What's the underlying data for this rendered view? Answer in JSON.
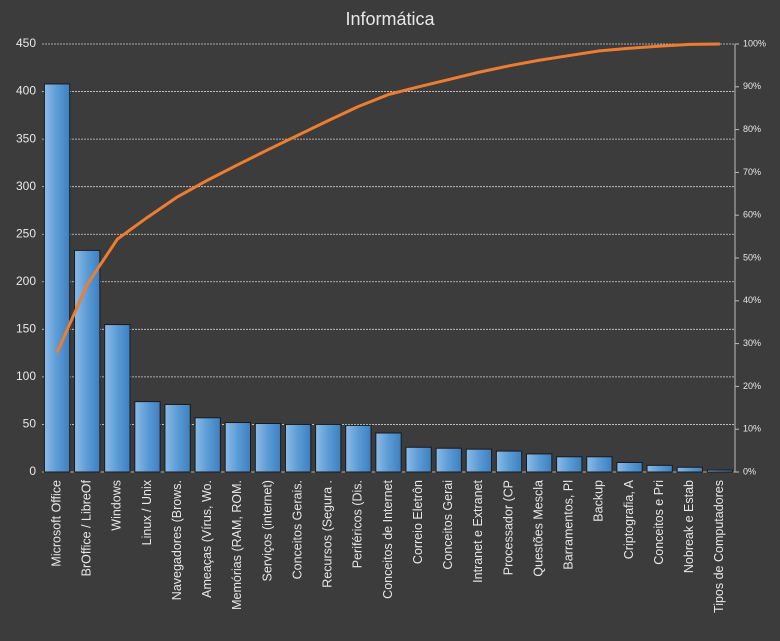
{
  "chart_data": {
    "type": "pareto",
    "title": "Informática",
    "categories": [
      "Microsoft Office",
      "BrOffice / LibreOf",
      "Windows",
      "Linux / Unix",
      "Navegadores (Brows.",
      "Ameaças (Vírus, Wo.",
      "Memórias (RAM, ROM.",
      "Serviços (internet)",
      "Conceitos Gerais.",
      "Recursos (Segura .",
      "Periféricos (Dis.",
      "Conceitos de Internet",
      "Correio Eletrôn",
      "Conceitos Gerai",
      "Intranet e Extranet",
      "Processador (CP",
      "Questões Mescla",
      "Barramentos, Pl",
      "Backup",
      "Criptografia, A",
      "Conceitos e Pri",
      "Nobreak e Estab",
      "Tipos de Computadores"
    ],
    "series": [
      {
        "color": "#5b9bd5",
        "values": [
          408,
          233,
          155,
          74,
          71,
          57,
          52,
          51,
          50,
          50,
          49,
          41,
          26,
          25,
          24,
          22,
          19,
          16,
          16,
          10,
          7,
          5,
          2
        ]
      },
      {
        "color": "#ed7d31",
        "axis": "y2",
        "values": [
          27.9,
          43.8,
          54.4,
          59.5,
          64.3,
          68.2,
          71.8,
          75.3,
          78.7,
          82.1,
          85.4,
          88.2,
          90.0,
          91.7,
          93.4,
          94.9,
          96.2,
          97.3,
          98.4,
          99.0,
          99.5,
          99.9,
          100
        ]
      }
    ],
    "ylim": [
      0,
      450
    ],
    "yticks": [
      0,
      50,
      100,
      150,
      200,
      250,
      300,
      350,
      400,
      450
    ],
    "y2lim": [
      0,
      100
    ],
    "y2ticks": [
      {
        "value": 0,
        "label": "0%"
      },
      {
        "value": 10,
        "label": "10%"
      },
      {
        "value": 20,
        "label": "20%"
      },
      {
        "value": 30,
        "label": "30%"
      },
      {
        "value": 40,
        "label": "40%"
      },
      {
        "value": 50,
        "label": "50%"
      },
      {
        "value": 60,
        "label": "60%"
      },
      {
        "value": 70,
        "label": "70%"
      },
      {
        "value": 80,
        "label": "80%"
      },
      {
        "value": 90,
        "label": "90%"
      },
      {
        "value": 100,
        "label": "100%"
      }
    ],
    "grid": true
  }
}
